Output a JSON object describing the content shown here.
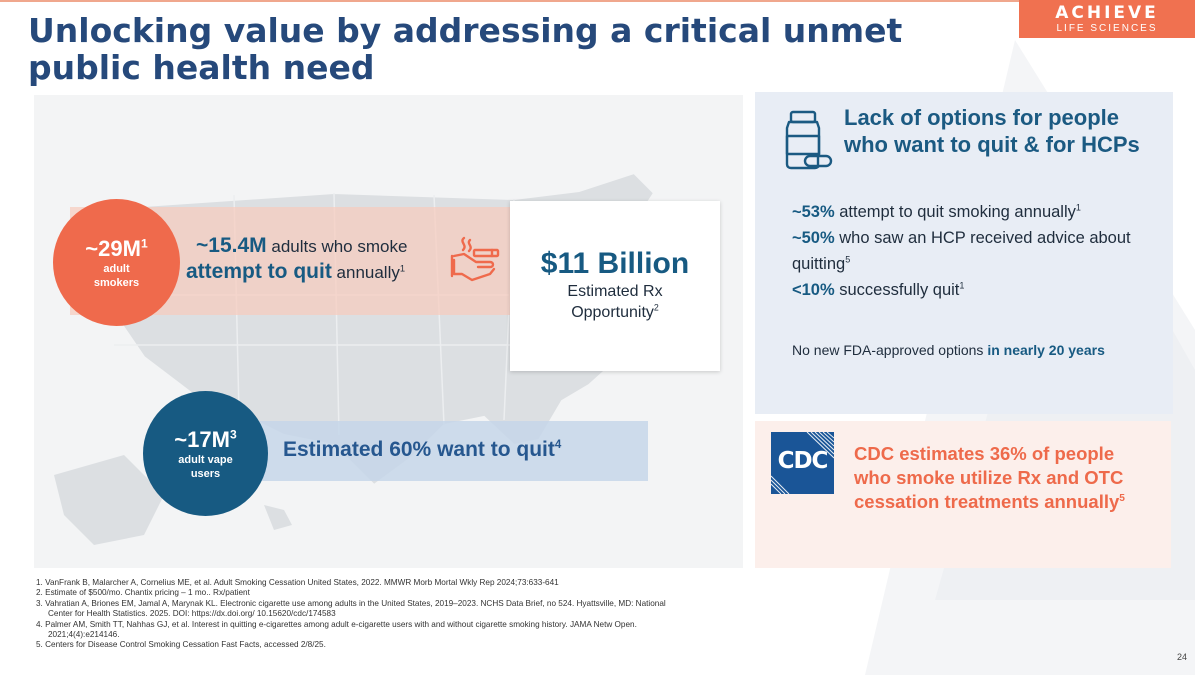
{
  "logo": {
    "line1": "ACHIEVE",
    "line2": "LIFE SCIENCES"
  },
  "title": "Unlocking value by addressing a critical unmet public health need",
  "colors": {
    "navy": "#26497b",
    "blue": "#175a82",
    "orange": "#ef6a4c",
    "cdc_blue": "#1a5597"
  },
  "smokers": {
    "value": "~29M",
    "sup": "1",
    "label_line1": "adult",
    "label_line2": "smokers"
  },
  "attempt": {
    "value": "~15.4M",
    "text1": " adults who smoke",
    "highlight2": "attempt to quit",
    "text2": " annually",
    "sup": "1",
    "icon": "hand-cigarette-icon"
  },
  "opportunity": {
    "value": "$11 Billion",
    "label_line1": "Estimated Rx",
    "label_line2": "Opportunity",
    "sup": "2"
  },
  "vape": {
    "value": "~17M",
    "sup": "3",
    "label_line1": "adult vape",
    "label_line2": "users"
  },
  "want_quit": {
    "text": "Estimated 60% want to quit",
    "sup": "4"
  },
  "options_panel": {
    "icon": "pill-bottle-icon",
    "heading": "Lack of options for people who want to quit & for HCPs",
    "stats": [
      {
        "highlight": "~53%",
        "text": " attempt to quit smoking annually",
        "sup": "1"
      },
      {
        "highlight": "~50%",
        "text": " who saw an HCP received advice about quitting",
        "sup": "5"
      },
      {
        "highlight": "<10%",
        "text": " successfully quit",
        "sup": "1"
      }
    ],
    "no_new_text": "No new FDA-approved options ",
    "no_new_highlight": "in nearly 20 years"
  },
  "cdc": {
    "logo_text": "CDC",
    "statement": "CDC estimates 36% of people who smoke utilize Rx and OTC cessation treatments annually",
    "sup": "5"
  },
  "references": [
    "1. VanFrank B, Malarcher A, Cornelius ME, et al. Adult Smoking Cessation United States, 2022. MMWR Morb Mortal Wkly Rep 2024;73:633-641",
    "2. Estimate of $500/mo. Chantix pricing – 1 mo.. Rx/patient",
    "3. Vahratian A, Briones EM, Jamal A, Marynak KL. Electronic cigarette use among adults in the United States, 2019–2023. NCHS Data Brief, no 524. Hyattsville, MD: National Center for Health Statistics. 2025. DOI: https://dx.doi.org/ 10.15620/cdc/174583",
    "4. Palmer  AM, Smith  TT, Nahhas  GJ,  et al.  Interest in quitting e-cigarettes among adult e-cigarette users with and without cigarette smoking history.  JAMA Netw Open. 2021;4(4):e214146.",
    "5. Centers for Disease Control Smoking Cessation Fast Facts, accessed 2/8/25."
  ],
  "page_number": "24"
}
